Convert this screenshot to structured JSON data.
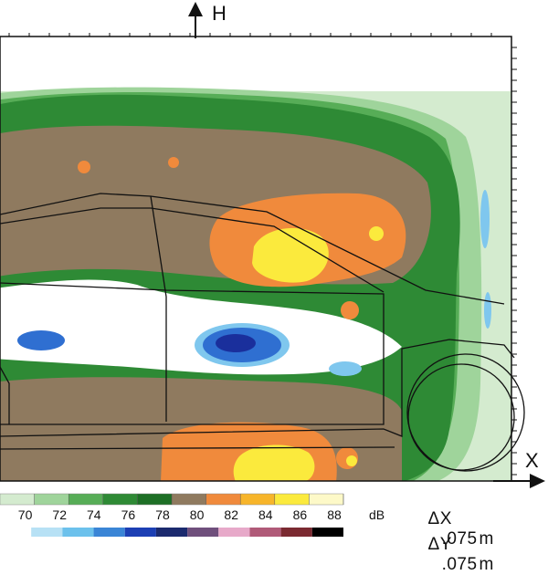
{
  "chart_data": {
    "type": "heatmap",
    "axes": {
      "horizontal_label": "X",
      "vertical_label": "H"
    },
    "colorbar": {
      "unit": "dB",
      "tick_labels": [
        "70",
        "72",
        "74",
        "76",
        "78",
        "80",
        "82",
        "84",
        "86",
        "88"
      ],
      "levels": [
        {
          "from": 68,
          "to": 70,
          "color": "#d4ebcf"
        },
        {
          "from": 70,
          "to": 72,
          "color": "#9fd49b"
        },
        {
          "from": 72,
          "to": 74,
          "color": "#57ad57"
        },
        {
          "from": 74,
          "to": 76,
          "color": "#2e8a35"
        },
        {
          "from": 76,
          "to": 78,
          "color": "#1d6f25"
        },
        {
          "from": 78,
          "to": 80,
          "color": "#8f7a5f"
        },
        {
          "from": 80,
          "to": 82,
          "color": "#f08a3c"
        },
        {
          "from": 82,
          "to": 84,
          "color": "#f7b52a"
        },
        {
          "from": 84,
          "to": 86,
          "color": "#fbea3d"
        },
        {
          "from": 86,
          "to": 88,
          "color": "#fdf9c8"
        }
      ],
      "secondary_strip_colors": [
        "#ffffff",
        "#b7e1f5",
        "#6cc1ec",
        "#3a85d6",
        "#1c3fb4",
        "#1b2a6e",
        "#6f4f7c",
        "#e7a9c9",
        "#b05a78",
        "#7b2a31",
        "#000000"
      ]
    },
    "grid_resolution": [
      {
        "axis": "ΔX",
        "value": ".075",
        "unit": "m"
      },
      {
        "axis": "ΔY",
        "value": ".075",
        "unit": "m"
      }
    ],
    "regions": [
      {
        "level_index": 3,
        "shape": "frame"
      },
      {
        "level_index": 5,
        "shape": "upper-band"
      },
      {
        "level_index": 5,
        "shape": "lower-band"
      },
      {
        "level_index": 6,
        "shape": "upper-hotspot"
      },
      {
        "level_index": 8,
        "shape": "upper-core"
      },
      {
        "level_index": 6,
        "shape": "lower-hotspot"
      },
      {
        "level_index": 8,
        "shape": "lower-core"
      }
    ]
  },
  "colors": {
    "frame": "#111111",
    "quiet": "#ffffff",
    "cool_low": "#7fc7ee",
    "cool_mid": "#2f6fd1",
    "cool_deep": "#1a2f9c"
  }
}
